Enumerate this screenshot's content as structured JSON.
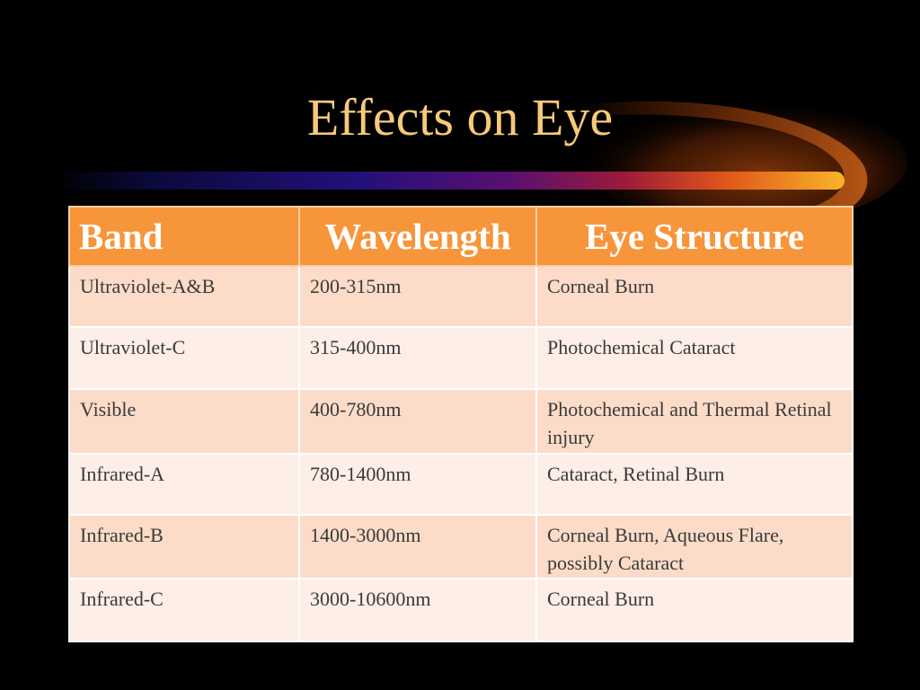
{
  "slide": {
    "title": "Effects on Eye"
  },
  "table": {
    "headers": [
      "Band",
      "Wavelength",
      "Eye Structure"
    ],
    "rows": [
      [
        "Ultraviolet-A&B",
        "200-315nm",
        "Corneal Burn"
      ],
      [
        "Ultraviolet-C",
        "315-400nm",
        "Photochemical Cataract"
      ],
      [
        "Visible",
        "400-780nm",
        "Photochemical and Thermal Retinal injury"
      ],
      [
        "Infrared-A",
        "780-1400nm",
        "Cataract, Retinal Burn"
      ],
      [
        "Infrared-B",
        "1400-3000nm",
        "Corneal Burn, Aqueous Flare, possibly Cataract"
      ],
      [
        "Infrared-C",
        "3000-10600nm",
        "Corneal Burn"
      ]
    ]
  },
  "colors": {
    "background": "#000000",
    "title": "#f7c97a",
    "header_fill": "#f7953a",
    "row_dark": "#fcdcc8",
    "row_light": "#fdeee7"
  }
}
